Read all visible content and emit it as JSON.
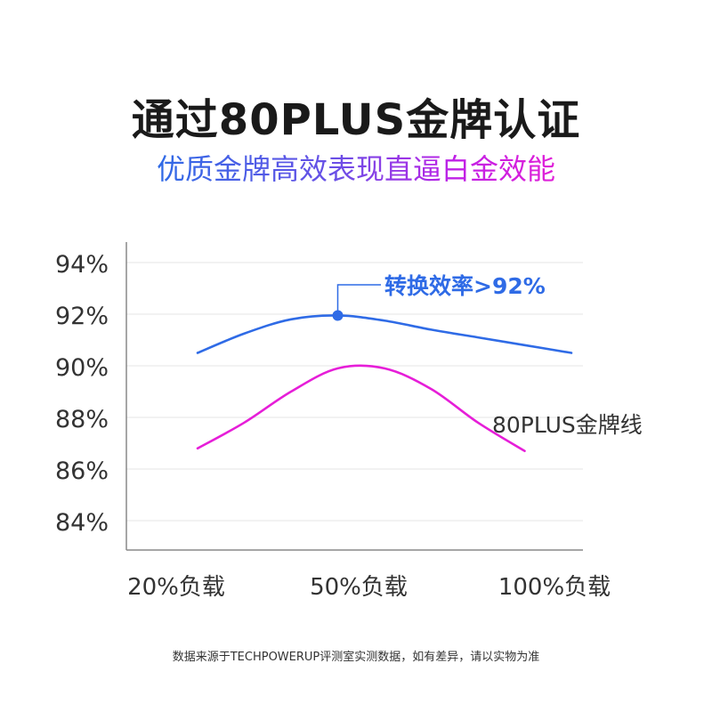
{
  "header": {
    "title": "通过80PLUS金牌认证",
    "subtitle": "优质金牌高效表现直逼白金效能"
  },
  "chart_data": {
    "type": "line",
    "x_categories": [
      "20%负载",
      "50%负载",
      "100%负载"
    ],
    "y_ticks": [
      "94%",
      "92%",
      "90%",
      "88%",
      "86%",
      "84%"
    ],
    "ylim": [
      83,
      95
    ],
    "grid": true,
    "series": [
      {
        "color": "#2f6be6",
        "x": [
          20,
          30,
          40,
          50,
          60,
          70,
          80,
          90,
          100
        ],
        "y": [
          90.5,
          91.25,
          91.8,
          91.95,
          91.75,
          91.4,
          91.1,
          90.8,
          90.5
        ],
        "highlight": {
          "x": 50,
          "y": 91.95,
          "label": "转换效率>92%"
        }
      },
      {
        "name": "80PLUS金牌线",
        "color": "#e61ed8",
        "x": [
          20,
          30,
          40,
          50,
          60,
          70,
          80,
          90
        ],
        "y": [
          86.8,
          87.8,
          89.0,
          89.9,
          89.9,
          89.1,
          87.8,
          86.7
        ]
      }
    ]
  },
  "footnote": "数据来源于TECHPOWERUP评测室实测数据，如有差异，请以实物为准"
}
